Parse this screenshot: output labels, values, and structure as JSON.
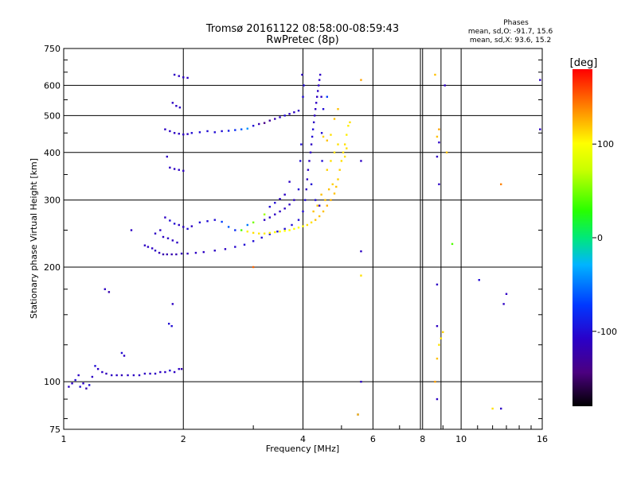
{
  "chart_data": {
    "type": "scatter",
    "title": "Tromsø 20161122 08:58:00-08:59:43",
    "subtitle": "RwPretec (8p)",
    "xlabel": "Frequency [MHz]",
    "ylabel": "Stationary phase Virtual Height [km]",
    "xscale": "log",
    "yscale": "log",
    "xlim": [
      1,
      16
    ],
    "ylim": [
      75,
      750
    ],
    "x_ticks": [
      1,
      2,
      4,
      6,
      8,
      10,
      16
    ],
    "x_tick_labels": [
      "1",
      "2",
      "4",
      "6",
      "8",
      "10",
      "16"
    ],
    "y_ticks": [
      75,
      100,
      200,
      300,
      400,
      500,
      600,
      750
    ],
    "y_tick_labels": [
      "75",
      "100",
      "200",
      "300",
      "400",
      "500",
      "600",
      "750"
    ],
    "grid": true,
    "phase_info": {
      "heading": "Phases",
      "o_line": "mean, sd,O: -91.7, 15.6",
      "x_line": "mean, sd,X: 93.6, 15.2"
    },
    "colorbar": {
      "label": "[deg]",
      "range": [
        -180,
        180
      ],
      "ticks": [
        100,
        0,
        -100
      ],
      "tick_labels": [
        "100",
        "0",
        "-100"
      ]
    },
    "colors": {
      "grid": "#000000",
      "axes": "#000000"
    },
    "series": [
      {
        "points": [
          [
            1.03,
            97,
            -110
          ],
          [
            1.05,
            99,
            -110
          ],
          [
            1.07,
            101,
            -100
          ],
          [
            1.09,
            104,
            -110
          ],
          [
            1.1,
            97,
            -100
          ],
          [
            1.12,
            99,
            -110
          ],
          [
            1.14,
            96,
            -120
          ],
          [
            1.16,
            98,
            -100
          ],
          [
            1.18,
            103,
            -110
          ],
          [
            1.2,
            110,
            -100
          ],
          [
            1.22,
            108,
            -110
          ],
          [
            1.25,
            106,
            -110
          ],
          [
            1.28,
            105,
            -115
          ],
          [
            1.32,
            104,
            -110
          ],
          [
            1.36,
            104,
            -110
          ],
          [
            1.4,
            104,
            -115
          ],
          [
            1.45,
            104,
            -110
          ],
          [
            1.5,
            104,
            -110
          ],
          [
            1.55,
            104,
            -110
          ],
          [
            1.6,
            105,
            -110
          ],
          [
            1.65,
            105,
            -110
          ],
          [
            1.7,
            105,
            -110
          ],
          [
            1.75,
            106,
            -110
          ],
          [
            1.8,
            106,
            -110
          ],
          [
            1.85,
            107,
            -100
          ],
          [
            1.9,
            106,
            -110
          ],
          [
            1.95,
            108,
            -110
          ],
          [
            1.98,
            108,
            -120
          ],
          [
            1.27,
            175,
            -110
          ],
          [
            1.3,
            172,
            -120
          ],
          [
            1.4,
            119,
            -100
          ],
          [
            1.42,
            117,
            -110
          ],
          [
            1.48,
            250,
            -110
          ],
          [
            1.88,
            160,
            -110
          ],
          [
            1.87,
            140,
            -100
          ],
          [
            1.84,
            142,
            -100
          ],
          [
            1.6,
            228,
            -110
          ],
          [
            1.63,
            226,
            -110
          ],
          [
            1.67,
            224,
            -110
          ],
          [
            1.7,
            221,
            -110
          ],
          [
            1.74,
            218,
            -115
          ],
          [
            1.78,
            216,
            -120
          ],
          [
            1.82,
            216,
            -120
          ],
          [
            1.87,
            216,
            -120
          ],
          [
            1.92,
            216,
            -120
          ],
          [
            1.98,
            217,
            -115
          ],
          [
            2.05,
            217,
            -115
          ],
          [
            2.15,
            218,
            -110
          ],
          [
            2.25,
            219,
            -110
          ],
          [
            2.4,
            221,
            -110
          ],
          [
            2.55,
            223,
            -110
          ],
          [
            2.7,
            226,
            -105
          ],
          [
            2.85,
            229,
            -100
          ],
          [
            3.0,
            234,
            -100
          ],
          [
            3.15,
            239,
            -100
          ],
          [
            3.3,
            244,
            -100
          ],
          [
            3.45,
            248,
            -100
          ],
          [
            3.6,
            252,
            -100
          ],
          [
            3.75,
            258,
            -100
          ],
          [
            3.9,
            266,
            -100
          ],
          [
            4.0,
            280,
            -100
          ],
          [
            4.05,
            300,
            -100
          ],
          [
            4.08,
            320,
            -110
          ],
          [
            4.1,
            340,
            -110
          ],
          [
            4.12,
            360,
            -110
          ],
          [
            4.15,
            380,
            -110
          ],
          [
            4.18,
            400,
            -110
          ],
          [
            4.2,
            420,
            -110
          ],
          [
            4.22,
            440,
            -100
          ],
          [
            4.24,
            460,
            -100
          ],
          [
            4.26,
            480,
            -110
          ],
          [
            4.28,
            500,
            -110
          ],
          [
            4.3,
            520,
            -110
          ],
          [
            4.32,
            540,
            -110
          ],
          [
            4.34,
            560,
            -110
          ],
          [
            4.36,
            580,
            -110
          ],
          [
            4.38,
            600,
            -110
          ],
          [
            4.4,
            620,
            -110
          ],
          [
            4.42,
            640,
            -110
          ],
          [
            4.45,
            560,
            -110
          ],
          [
            4.46,
            450,
            -100
          ],
          [
            4.47,
            380,
            -100
          ],
          [
            4.0,
            560,
            -100
          ],
          [
            4.02,
            600,
            -100
          ],
          [
            3.98,
            640,
            -110
          ],
          [
            3.96,
            420,
            -100
          ],
          [
            3.94,
            380,
            -100
          ],
          [
            1.8,
            460,
            -110
          ],
          [
            1.85,
            455,
            -110
          ],
          [
            1.9,
            450,
            -110
          ],
          [
            1.95,
            448,
            -110
          ],
          [
            2.0,
            446,
            -110
          ],
          [
            2.05,
            447,
            -110
          ],
          [
            2.1,
            450,
            -100
          ],
          [
            2.2,
            452,
            -100
          ],
          [
            2.3,
            455,
            -100
          ],
          [
            2.4,
            452,
            -100
          ],
          [
            2.5,
            455,
            -100
          ],
          [
            2.6,
            456,
            -90
          ],
          [
            2.7,
            458,
            -80
          ],
          [
            2.8,
            460,
            -60
          ],
          [
            2.9,
            462,
            -40
          ],
          [
            3.0,
            470,
            -100
          ],
          [
            3.1,
            475,
            -120
          ],
          [
            3.2,
            478,
            -140
          ],
          [
            3.3,
            485,
            -130
          ],
          [
            3.4,
            490,
            -120
          ],
          [
            3.5,
            495,
            -110
          ],
          [
            3.6,
            500,
            -100
          ],
          [
            3.7,
            505,
            -110
          ],
          [
            3.8,
            510,
            -110
          ],
          [
            3.9,
            515,
            -110
          ],
          [
            1.88,
            540,
            -110
          ],
          [
            1.92,
            530,
            -110
          ],
          [
            1.96,
            525,
            -110
          ],
          [
            1.9,
            640,
            -110
          ],
          [
            1.95,
            635,
            -110
          ],
          [
            2.0,
            630,
            -110
          ],
          [
            2.05,
            628,
            -110
          ],
          [
            1.85,
            365,
            -110
          ],
          [
            1.9,
            362,
            -110
          ],
          [
            1.95,
            360,
            -110
          ],
          [
            2.0,
            358,
            -110
          ],
          [
            1.82,
            390,
            -110
          ],
          [
            1.8,
            270,
            -110
          ],
          [
            1.85,
            265,
            -100
          ],
          [
            1.9,
            260,
            -100
          ],
          [
            1.95,
            258,
            -110
          ],
          [
            2.0,
            255,
            -110
          ],
          [
            2.05,
            252,
            -100
          ],
          [
            2.1,
            256,
            -110
          ],
          [
            1.75,
            250,
            -110
          ],
          [
            1.7,
            245,
            -110
          ],
          [
            1.78,
            240,
            -110
          ],
          [
            1.83,
            238,
            -110
          ],
          [
            1.88,
            235,
            -110
          ],
          [
            1.93,
            232,
            -110
          ],
          [
            2.2,
            262,
            -100
          ],
          [
            2.3,
            264,
            -100
          ],
          [
            2.4,
            266,
            -100
          ],
          [
            2.5,
            263,
            -70
          ],
          [
            2.6,
            255,
            -60
          ],
          [
            2.7,
            250,
            -80
          ],
          [
            2.9,
            258,
            -50
          ],
          [
            3.2,
            266,
            -110
          ],
          [
            3.3,
            270,
            -110
          ],
          [
            3.4,
            275,
            -110
          ],
          [
            3.5,
            280,
            -110
          ],
          [
            3.6,
            285,
            -110
          ],
          [
            3.7,
            292,
            -110
          ],
          [
            3.8,
            300,
            -110
          ],
          [
            3.3,
            288,
            -100
          ],
          [
            3.4,
            295,
            -100
          ],
          [
            3.5,
            302,
            -110
          ],
          [
            3.6,
            310,
            -110
          ],
          [
            3.9,
            320,
            -100
          ],
          [
            3.7,
            335,
            -110
          ],
          [
            4.4,
            290,
            -110
          ],
          [
            4.3,
            300,
            -100
          ],
          [
            4.2,
            330,
            -100
          ],
          [
            4.5,
            520,
            -100
          ],
          [
            4.6,
            560,
            -70
          ],
          [
            5.6,
            100,
            -110
          ],
          [
            5.6,
            220,
            -110
          ],
          [
            5.6,
            380,
            -110
          ],
          [
            5.5,
            82,
            -110
          ],
          [
            8.7,
            90,
            -110
          ],
          [
            8.8,
            330,
            -110
          ],
          [
            8.8,
            425,
            -110
          ],
          [
            8.7,
            390,
            -110
          ],
          [
            8.7,
            180,
            -110
          ],
          [
            8.7,
            140,
            -110
          ],
          [
            12.6,
            85,
            -110
          ],
          [
            15.8,
            460,
            -110
          ],
          [
            15.8,
            620,
            -110
          ],
          [
            12.8,
            160,
            -110
          ],
          [
            13.0,
            170,
            -110
          ],
          [
            11.1,
            185,
            -100
          ],
          [
            9.1,
            600,
            -110
          ]
        ]
      },
      {
        "points": [
          [
            2.9,
            248,
            105
          ],
          [
            3.0,
            246,
            110
          ],
          [
            3.1,
            245,
            108
          ],
          [
            3.2,
            245,
            106
          ],
          [
            3.3,
            246,
            104
          ],
          [
            3.4,
            247,
            102
          ],
          [
            3.5,
            248,
            100
          ],
          [
            3.6,
            249,
            100
          ],
          [
            3.7,
            250,
            100
          ],
          [
            3.8,
            252,
            100
          ],
          [
            3.9,
            254,
            100
          ],
          [
            4.0,
            256,
            100
          ],
          [
            4.1,
            258,
            110
          ],
          [
            4.2,
            262,
            110
          ],
          [
            4.3,
            266,
            120
          ],
          [
            4.4,
            272,
            120
          ],
          [
            4.5,
            280,
            120
          ],
          [
            4.6,
            290,
            125
          ],
          [
            4.7,
            300,
            125
          ],
          [
            4.8,
            312,
            120
          ],
          [
            4.85,
            325,
            120
          ],
          [
            4.9,
            340,
            115
          ],
          [
            4.95,
            360,
            115
          ],
          [
            5.0,
            380,
            110
          ],
          [
            5.05,
            400,
            110
          ],
          [
            5.1,
            420,
            110
          ],
          [
            5.15,
            445,
            105
          ],
          [
            5.2,
            470,
            105
          ],
          [
            5.25,
            480,
            110
          ],
          [
            4.9,
            420,
            110
          ],
          [
            4.8,
            400,
            110
          ],
          [
            4.7,
            380,
            110
          ],
          [
            4.6,
            360,
            115
          ],
          [
            4.75,
            330,
            115
          ],
          [
            4.65,
            320,
            120
          ],
          [
            4.55,
            300,
            120
          ],
          [
            4.35,
            290,
            120
          ],
          [
            4.45,
            310,
            120
          ],
          [
            4.25,
            280,
            120
          ],
          [
            5.1,
            390,
            110
          ],
          [
            5.15,
            410,
            110
          ],
          [
            4.6,
            430,
            120
          ],
          [
            4.5,
            440,
            115
          ],
          [
            4.7,
            445,
            110
          ],
          [
            3.2,
            275,
            60
          ],
          [
            3.0,
            262,
            50
          ],
          [
            2.8,
            250,
            40
          ],
          [
            4.8,
            490,
            120
          ],
          [
            4.9,
            520,
            120
          ],
          [
            5.6,
            190,
            110
          ],
          [
            5.6,
            620,
            130
          ],
          [
            5.5,
            82,
            120
          ],
          [
            8.6,
            100,
            130
          ],
          [
            8.7,
            115,
            120
          ],
          [
            8.8,
            125,
            110
          ],
          [
            8.9,
            130,
            110
          ],
          [
            9.0,
            135,
            115
          ],
          [
            8.7,
            440,
            120
          ],
          [
            8.8,
            460,
            130
          ],
          [
            8.6,
            640,
            120
          ],
          [
            12.0,
            85,
            110
          ],
          [
            12.6,
            330,
            140
          ],
          [
            9.2,
            400,
            120
          ],
          [
            9.5,
            230,
            40
          ],
          [
            3.0,
            200,
            150
          ]
        ]
      }
    ]
  }
}
